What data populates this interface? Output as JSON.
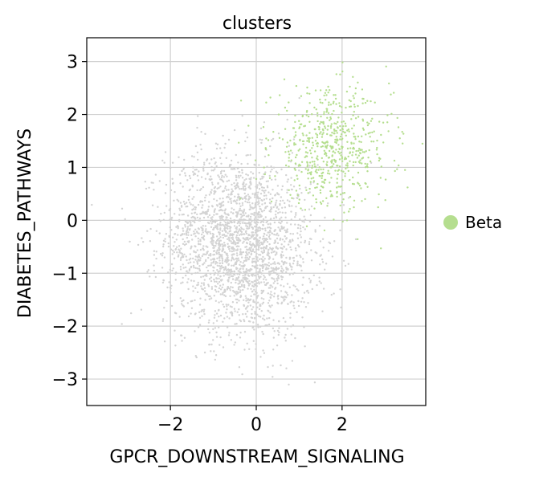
{
  "chart_data": {
    "type": "scatter",
    "title": "clusters",
    "xlabel": "GPCR_DOWNSTREAM_SIGNALING",
    "ylabel": "DIABETES_PATHWAYS",
    "xlim": [
      -3.95,
      3.95
    ],
    "ylim": [
      -3.5,
      3.45
    ],
    "xticks": [
      -2,
      0,
      2
    ],
    "yticks": [
      -3,
      -2,
      -1,
      0,
      1,
      2,
      3
    ],
    "grid": true,
    "legend_position": "right",
    "series": [
      {
        "color": "#d3d3d3",
        "points_estimated": 2400,
        "center": [
          -0.4,
          -0.45
        ],
        "spread": [
          0.85,
          0.85
        ],
        "correlation": -0.1
      },
      {
        "name": "Beta",
        "color": "#b5de8f",
        "points_estimated": 600,
        "center": [
          1.75,
          1.35
        ],
        "spread": [
          0.7,
          0.55
        ],
        "correlation": 0.0
      }
    ]
  }
}
